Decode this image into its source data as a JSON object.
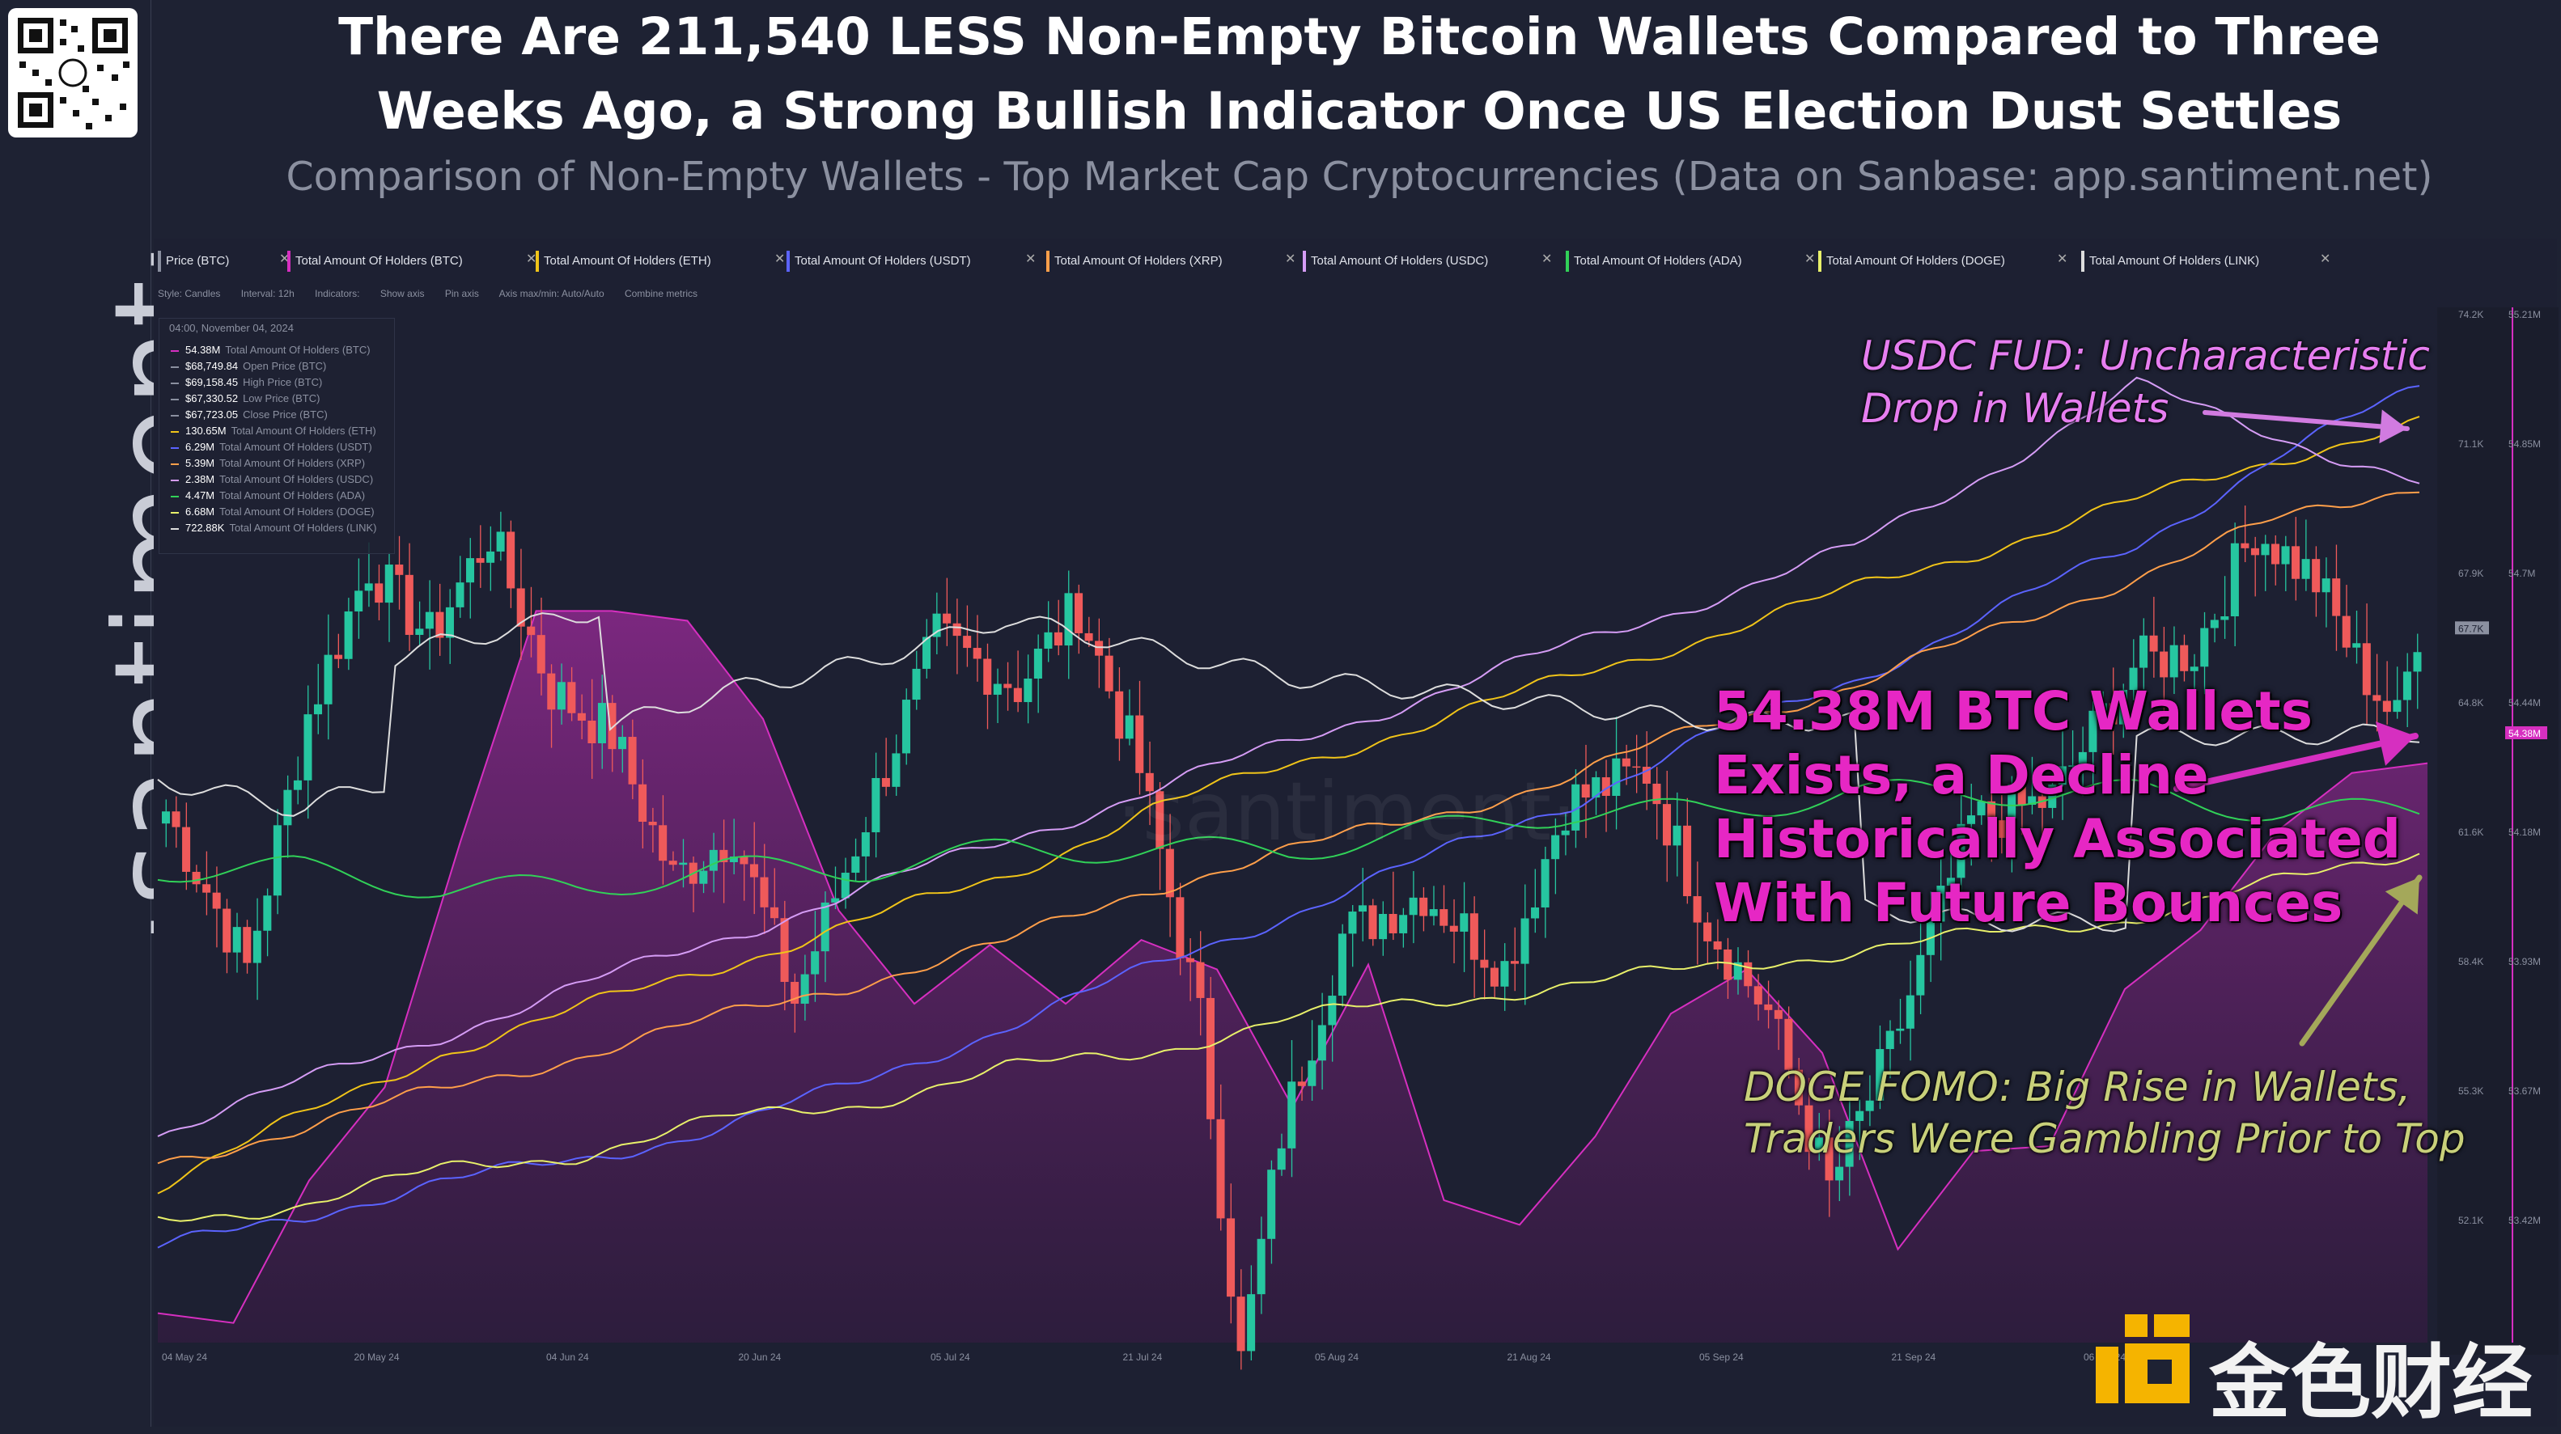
{
  "title_lines": [
    "There Are 211,540 LESS Non-Empty Bitcoin Wallets Compared to Three",
    "Weeks Ago, a Strong Bullish Indicator Once US Election Dust Settles"
  ],
  "subtitle": "Comparison of Non-Empty Wallets - Top Market Cap Cryptocurrencies (Data on Sanbase: app.santiment.net)",
  "brand": "·santiment·",
  "footer_brand": "金色财经",
  "toolbar": {
    "tabs": [
      {
        "label": "Price (BTC)",
        "color": "#8b90a0"
      },
      {
        "label": "Total Amount Of Holders (BTC)",
        "color": "#d62fc0"
      },
      {
        "label": "Total Amount Of Holders (ETH)",
        "color": "#f0c419"
      },
      {
        "label": "Total Amount Of Holders (USDT)",
        "color": "#5b63ff"
      },
      {
        "label": "Total Amount Of Holders (XRP)",
        "color": "#ff9f4a"
      },
      {
        "label": "Total Amount Of Holders (USDC)",
        "color": "#d59cf5"
      },
      {
        "label": "Total Amount Of Holders (ADA)",
        "color": "#31d158"
      },
      {
        "label": "Total Amount Of Holders (DOGE)",
        "color": "#e8f06a"
      },
      {
        "label": "Total Amount Of Holders (LINK)",
        "color": "#dddddd"
      }
    ],
    "style": "Style: Candles",
    "interval": "Interval: 12h",
    "indicators": "Indicators:",
    "show_axis": "Show axis",
    "pin_axis": "Pin axis",
    "axis_mode": "Axis max/min: Auto/Auto",
    "combine": "Combine metrics"
  },
  "legend": {
    "date": "04:00, November 04, 2024",
    "rows": [
      {
        "value": "54.38M",
        "name": "Total Amount Of Holders (BTC)",
        "color": "#d62fc0"
      },
      {
        "value": "$68,749.84",
        "name": "Open Price (BTC)",
        "color": "#8b90a0"
      },
      {
        "value": "$69,158.45",
        "name": "High Price (BTC)",
        "color": "#8b90a0"
      },
      {
        "value": "$67,330.52",
        "name": "Low Price (BTC)",
        "color": "#8b90a0"
      },
      {
        "value": "$67,723.05",
        "name": "Close Price (BTC)",
        "color": "#8b90a0"
      },
      {
        "value": "130.65M",
        "name": "Total Amount Of Holders (ETH)",
        "color": "#f0c419"
      },
      {
        "value": "6.29M",
        "name": "Total Amount Of Holders (USDT)",
        "color": "#5b63ff"
      },
      {
        "value": "5.39M",
        "name": "Total Amount Of Holders (XRP)",
        "color": "#ff9f4a"
      },
      {
        "value": "2.38M",
        "name": "Total Amount Of Holders (USDC)",
        "color": "#d59cf5"
      },
      {
        "value": "4.47M",
        "name": "Total Amount Of Holders (ADA)",
        "color": "#31d158"
      },
      {
        "value": "6.68M",
        "name": "Total Amount Of Holders (DOGE)",
        "color": "#e8f06a"
      },
      {
        "value": "722.88K",
        "name": "Total Amount Of Holders (LINK)",
        "color": "#dddddd"
      }
    ]
  },
  "annotations": {
    "usdc": [
      "USDC FUD: Uncharacteristic",
      "Drop in Wallets"
    ],
    "btc": [
      "54.38M BTC Wallets",
      "Exists, a Decline",
      "Historically Associated",
      "With Future Bounces"
    ],
    "doge": [
      "DOGE FOMO: Big Rise in Wallets,",
      "Traders Were Gambling Prior to Top"
    ]
  },
  "colors": {
    "up": "#26c6a0",
    "down": "#ef5a5a",
    "btc_holders": "#d62fc0",
    "eth_holders": "#f0c419",
    "usdt_holders": "#5b63ff",
    "xrp_holders": "#ff9f4a",
    "usdc_holders": "#d59cf5",
    "ada_holders": "#31d158",
    "doge_holders": "#e8f06a",
    "link_holders": "#dddddd"
  },
  "chart_data": {
    "type": "line",
    "x_tick_labels": [
      "04 May 24",
      "20 May 24",
      "04 Jun 24",
      "20 Jun 24",
      "05 Jul 24",
      "21 Jul 24",
      "05 Aug 24",
      "21 Aug 24",
      "05 Sep 24",
      "21 Sep 24",
      "06 Oct 24"
    ],
    "price_axis_labels": [
      "74.2K",
      "71.1K",
      "67.9K",
      "64.8K",
      "61.6K",
      "58.4K",
      "55.3K",
      "52.1K"
    ],
    "price_ylim": [
      50000,
      75600
    ],
    "btc_holders_axis_labels": [
      "55.21M",
      "54.85M",
      "54.7M",
      "54.44M",
      "54.18M",
      "53.93M",
      "53.67M",
      "53.42M"
    ],
    "price_marker": "67.7K",
    "btc_holders_marker": "54.38M",
    "price_anchors": [
      [
        0,
        63200
      ],
      [
        8,
        59300
      ],
      [
        14,
        65600
      ],
      [
        20,
        69300
      ],
      [
        26,
        67500
      ],
      [
        32,
        70100
      ],
      [
        38,
        66200
      ],
      [
        44,
        65100
      ],
      [
        50,
        61500
      ],
      [
        56,
        62700
      ],
      [
        62,
        58500
      ],
      [
        68,
        62400
      ],
      [
        76,
        67500
      ],
      [
        84,
        66300
      ],
      [
        90,
        68300
      ],
      [
        96,
        64200
      ],
      [
        102,
        58000
      ],
      [
        106,
        49500
      ],
      [
        110,
        55200
      ],
      [
        116,
        60100
      ],
      [
        124,
        61200
      ],
      [
        132,
        59300
      ],
      [
        138,
        63400
      ],
      [
        146,
        64200
      ],
      [
        152,
        60400
      ],
      [
        158,
        58200
      ],
      [
        164,
        53800
      ],
      [
        170,
        57200
      ],
      [
        178,
        62900
      ],
      [
        186,
        63500
      ],
      [
        194,
        66800
      ],
      [
        200,
        67200
      ],
      [
        206,
        70200
      ],
      [
        212,
        68900
      ],
      [
        216,
        66900
      ],
      [
        220,
        65400
      ],
      [
        222,
        67723
      ]
    ],
    "series": [
      {
        "name": "Total Amount Of Holders (BTC)",
        "y": [
          53.26,
          53.24,
          53.53,
          53.72,
          54.22,
          54.69,
          54.69,
          54.67,
          54.47,
          54.08,
          53.89,
          54.01,
          53.89,
          54.02,
          53.96,
          53.68,
          53.97,
          53.49,
          53.44,
          53.62,
          53.87,
          53.96,
          53.79,
          53.39,
          53.59,
          53.6,
          53.92,
          54.04,
          54.24,
          54.36,
          54.38
        ],
        "color": "#d62fc0"
      },
      {
        "name": "Total Amount Of Holders (ETH)",
        "y": [
          127.2,
          127.5,
          127.8,
          128.0,
          128.2,
          128.4,
          128.6,
          128.9,
          129.1,
          129.3,
          129.5,
          129.7,
          129.9,
          130.1,
          130.3,
          130.5,
          130.65
        ],
        "color": "#f0c419"
      },
      {
        "name": "Total Amount Of Holders (USDT)",
        "y": [
          5.52,
          5.55,
          5.58,
          5.6,
          5.63,
          5.67,
          5.72,
          5.77,
          5.82,
          5.87,
          5.92,
          5.98,
          6.03,
          6.09,
          6.15,
          6.23,
          6.29
        ],
        "color": "#5b63ff"
      },
      {
        "name": "Total Amount Of Holders (XRP)",
        "y": [
          5.02,
          5.04,
          5.06,
          5.08,
          5.1,
          5.12,
          5.14,
          5.17,
          5.19,
          5.21,
          5.23,
          5.26,
          5.28,
          5.31,
          5.34,
          5.37,
          5.39
        ],
        "color": "#ff9f4a"
      },
      {
        "name": "Total Amount Of Holders (USDC)",
        "y": [
          1.98,
          2.01,
          2.04,
          2.07,
          2.1,
          2.13,
          2.16,
          2.19,
          2.22,
          2.25,
          2.28,
          2.31,
          2.34,
          2.39,
          2.44,
          2.41,
          2.38
        ],
        "color": "#d59cf5"
      },
      {
        "name": "Total Amount Of Holders (ADA)",
        "y": [
          4.44,
          4.44,
          4.43,
          4.43,
          4.44,
          4.44,
          4.45,
          4.45,
          4.45,
          4.46,
          4.47,
          4.47,
          4.48,
          4.48,
          4.48,
          4.47,
          4.47
        ],
        "color": "#31d158"
      },
      {
        "name": "Total Amount Of Holders (DOGE)",
        "y": [
          6.46,
          6.47,
          6.49,
          6.5,
          6.52,
          6.53,
          6.55,
          6.56,
          6.58,
          6.59,
          6.6,
          6.61,
          6.62,
          6.63,
          6.64,
          6.66,
          6.68
        ],
        "color": "#e8f06a"
      },
      {
        "name": "Total Amount Of Holders (LINK)",
        "y": [
          723.2,
          723.4,
          723.1,
          722.9,
          722.6,
          722.4,
          722.1,
          722.3,
          722.5,
          722.6,
          722.7,
          722.8,
          722.8,
          722.9,
          722.9,
          722.9,
          722.88
        ],
        "color": "#dddddd"
      }
    ]
  }
}
